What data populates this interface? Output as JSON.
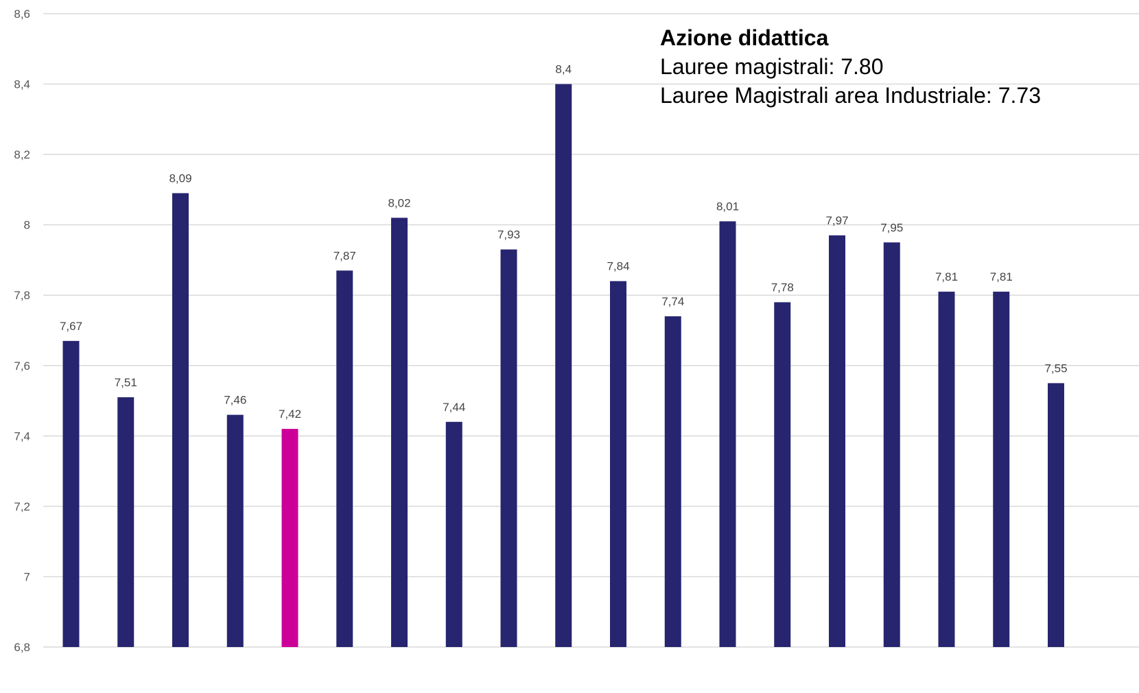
{
  "chart_data": {
    "type": "bar",
    "title": "",
    "xlabel": "",
    "ylabel": "",
    "ylim": [
      6.8,
      8.6
    ],
    "yticks": [
      "6,8",
      "7",
      "7,2",
      "7,4",
      "7,6",
      "7,8",
      "8",
      "8,2",
      "8,4",
      "8,6"
    ],
    "ytick_values": [
      6.8,
      7.0,
      7.2,
      7.4,
      7.6,
      7.8,
      8.0,
      8.2,
      8.4,
      8.6
    ],
    "grid": true,
    "values": [
      7.67,
      7.51,
      8.09,
      7.46,
      7.42,
      7.87,
      8.02,
      7.44,
      7.93,
      8.4,
      7.84,
      7.74,
      8.01,
      7.78,
      7.97,
      7.95,
      7.81,
      7.81,
      7.55
    ],
    "value_labels": [
      "7,67",
      "7,51",
      "8,09",
      "7,46",
      "7,42",
      "7,87",
      "8,02",
      "7,44",
      "7,93",
      "8,4",
      "7,84",
      "7,74",
      "8,01",
      "7,78",
      "7,97",
      "7,95",
      "7,81",
      "7,81",
      "7,55"
    ],
    "highlight_index": 4,
    "colors": {
      "bar": "#27256f",
      "highlight": "#cc0099",
      "grid": "#d9d9d9",
      "axis_text": "#555555"
    },
    "annotation": {
      "title": "Azione didattica",
      "lines": [
        "Lauree magistrali: 7.80",
        "Lauree Magistrali area Industriale: 7.73"
      ]
    }
  }
}
